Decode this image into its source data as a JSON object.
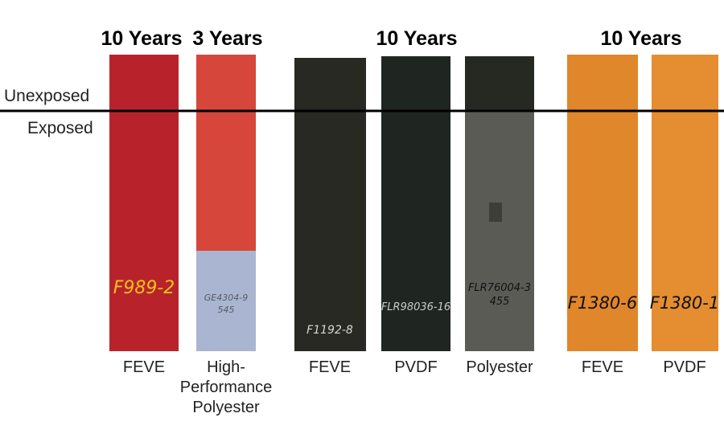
{
  "periods": [
    "10 Years",
    "3 Years",
    "10 Years",
    "10 Years"
  ],
  "line_labels": {
    "above": "Unexposed",
    "below": "Exposed"
  },
  "panels": [
    {
      "code": [
        "F989-2"
      ],
      "coating": [
        "FEVE"
      ]
    },
    {
      "code": [
        "GE4304-9",
        "545"
      ],
      "coating": [
        "High-",
        "Performance",
        "Polyester"
      ]
    },
    {
      "code": [
        "F1192-8"
      ],
      "coating": [
        "FEVE"
      ]
    },
    {
      "code": [
        "FLR98036-16"
      ],
      "coating": [
        "PVDF"
      ]
    },
    {
      "code": [
        "FLR76004-3",
        "455"
      ],
      "coating": [
        "Polyester"
      ]
    },
    {
      "code": [
        "F1380-6"
      ],
      "coating": [
        "FEVE"
      ]
    },
    {
      "code": [
        "F1380-1"
      ],
      "coating": [
        "PVDF"
      ]
    }
  ]
}
